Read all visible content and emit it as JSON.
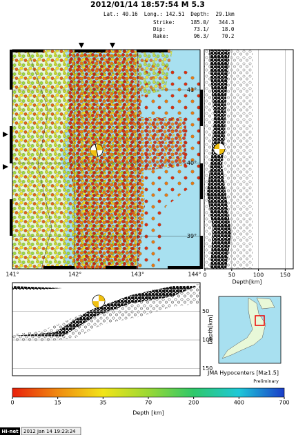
{
  "header": {
    "title": "2012/01/14 18:57:54  M 5.3",
    "location": "Lat.: 40.16  Long.: 142.51  Depth:  29.1km",
    "strike": "Strike:     185.0/   344.3",
    "dip": "Dip:         73.1/    18.0",
    "rake": "Rake:        96.3/    70.2"
  },
  "map": {
    "xlim": [
      141,
      144
    ],
    "ylim": [
      38.55,
      41.55
    ],
    "xticks": [
      {
        "value": 141,
        "label": "141°"
      },
      {
        "value": 142,
        "label": "142°"
      },
      {
        "value": 143,
        "label": "143°"
      },
      {
        "value": 144,
        "label": "144°"
      }
    ],
    "yticks": [
      {
        "value": 39,
        "label": "39°"
      },
      {
        "value": 40,
        "label": "40°"
      },
      {
        "value": 41,
        "label": "41°"
      }
    ]
  },
  "depth_panel": {
    "xlim": [
      0,
      165
    ],
    "xticks": [
      0,
      50,
      100,
      150
    ],
    "xlabel": "Depth[km]"
  },
  "cross_section": {
    "ylim": [
      0,
      162.5
    ],
    "yticks": [
      50,
      100,
      150
    ],
    "ylabel": "Depth[km]"
  },
  "inset": {
    "caption": "JMA Hypocenters [M≥1.5]",
    "note": "Preliminary"
  },
  "colorbar": {
    "ticks": [
      0,
      15,
      35,
      70,
      200,
      400,
      700
    ],
    "label": "Depth [km]",
    "colors": [
      "#e8200c",
      "#f08a10",
      "#f2e418",
      "#9ad835",
      "#2fc86a",
      "#1ec8d8",
      "#1a3cc8"
    ]
  },
  "footer": {
    "brand": "Hi-net",
    "timestamp": "2012 Jan 14 19:23:24"
  }
}
